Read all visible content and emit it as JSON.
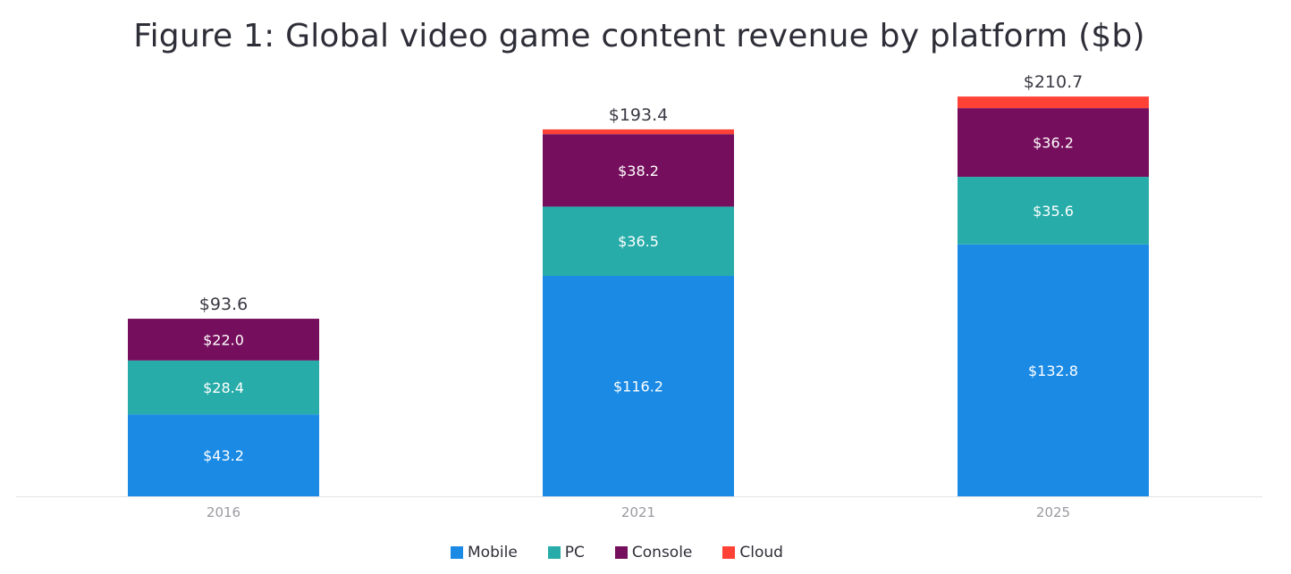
{
  "chart_data": {
    "type": "bar",
    "stacked": true,
    "title": "Figure 1: Global video game content revenue by platform ($b)",
    "categories": [
      "2016",
      "2021",
      "2025"
    ],
    "series": [
      {
        "name": "Mobile",
        "color": "#1a8ae5",
        "values": [
          43.2,
          116.2,
          132.8
        ],
        "labels": [
          "$43.2",
          "$116.2",
          "$132.8"
        ]
      },
      {
        "name": "PC",
        "color": "#27aca9",
        "values": [
          28.4,
          36.5,
          35.6
        ],
        "labels": [
          "$28.4",
          "$36.5",
          "$35.6"
        ]
      },
      {
        "name": "Console",
        "color": "#750e5c",
        "values": [
          22.0,
          38.2,
          36.2
        ],
        "labels": [
          "$22.0",
          "$38.2",
          "$36.2"
        ]
      },
      {
        "name": "Cloud",
        "color": "#ff4136",
        "values": [
          0.0,
          2.5,
          6.1
        ],
        "labels": [
          "",
          "",
          ""
        ]
      }
    ],
    "totals": [
      "$93.6",
      "$193.4",
      "$210.7"
    ],
    "legend_position": "bottom",
    "grid": false
  }
}
